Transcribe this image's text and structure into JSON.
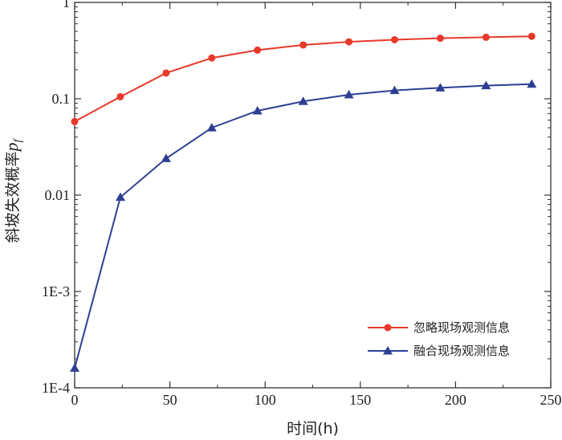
{
  "chart_data": {
    "type": "line",
    "xlabel": "时间(h)",
    "ylabel_main": "斜坡失效概率",
    "ylabel_symbol": "p",
    "ylabel_subscript": "f",
    "xlim": [
      0,
      250
    ],
    "ylim": [
      0.0001,
      1
    ],
    "yscale": "log",
    "x_ticks": [
      0,
      50,
      100,
      150,
      200,
      250
    ],
    "y_ticks": [
      {
        "value": 0.0001,
        "label": "1E-4"
      },
      {
        "value": 0.001,
        "label": "1E-3"
      },
      {
        "value": 0.01,
        "label": "0.01"
      },
      {
        "value": 0.1,
        "label": "0.1"
      },
      {
        "value": 1,
        "label": "1"
      }
    ],
    "x": [
      0,
      24,
      48,
      72,
      96,
      120,
      144,
      168,
      192,
      216,
      240
    ],
    "series": [
      {
        "name": "忽略现场观测信息",
        "color": "#e8392b",
        "marker": "circle",
        "values": [
          0.058,
          0.105,
          0.185,
          0.265,
          0.32,
          0.362,
          0.39,
          0.41,
          0.425,
          0.435,
          0.445
        ]
      },
      {
        "name": "融合现场观测信息",
        "color": "#2e3f93",
        "marker": "triangle",
        "values": [
          0.00016,
          0.0095,
          0.024,
          0.05,
          0.075,
          0.094,
          0.11,
          0.122,
          0.13,
          0.137,
          0.142
        ]
      }
    ],
    "legend_position": "bottom-right",
    "grid": false
  }
}
